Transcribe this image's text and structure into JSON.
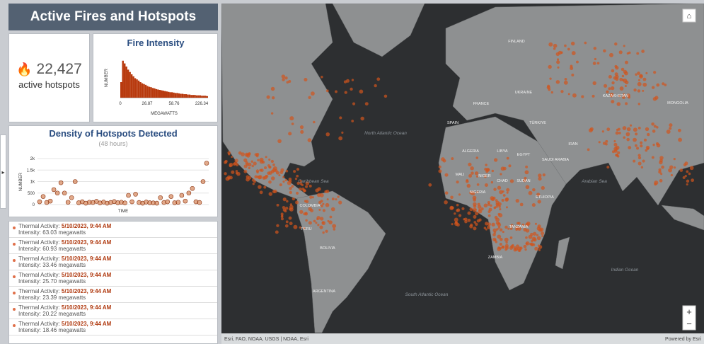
{
  "header": {
    "title": "Active Fires and Hotspots"
  },
  "indicator": {
    "value": "22,427",
    "label": "active hotspots"
  },
  "fire_intensity": {
    "chart_data": {
      "type": "histogram",
      "title": "Fire Intensity",
      "y_label": "NUMBER",
      "x_label": "MEGAWATTS",
      "color": "#b83a0e",
      "ylim": [
        0,
        100
      ],
      "values": [
        40,
        95,
        88,
        80,
        72,
        66,
        60,
        55,
        50,
        47,
        44,
        40,
        37,
        35,
        33,
        30,
        28,
        27,
        25,
        24,
        22,
        21,
        20,
        19,
        18,
        17,
        16,
        15,
        14,
        14,
        13,
        12,
        12,
        11,
        10,
        10,
        9,
        9,
        8,
        8,
        7,
        7,
        7,
        6,
        6,
        6,
        5,
        5,
        5,
        4
      ],
      "xtick_labels": [
        "0",
        "26.87",
        "58.76",
        "226.34"
      ]
    }
  },
  "density": {
    "chart_data": {
      "type": "scatter",
      "title": "Density of Hotspots Detected",
      "subtitle": "(48 hours)",
      "y_label": "NUMBER",
      "x_label": "TIME",
      "color": "#c8622a",
      "ylim": [
        0,
        2000
      ],
      "yticks": [
        {
          "value": 2000,
          "label": "2k"
        },
        {
          "value": 1500,
          "label": "1.5k"
        },
        {
          "value": 1000,
          "label": "1k"
        },
        500,
        0
      ],
      "values": [
        120,
        350,
        90,
        150,
        650,
        500,
        950,
        500,
        100,
        300,
        1000,
        80,
        120,
        60,
        100,
        90,
        140,
        70,
        110,
        60,
        90,
        130,
        80,
        100,
        70,
        400,
        120,
        450,
        90,
        60,
        110,
        80,
        70,
        60,
        300,
        90,
        120,
        350,
        80,
        100,
        400,
        150,
        500,
        700,
        120,
        90,
        1000,
        1800
      ]
    }
  },
  "list": {
    "items": [
      {
        "label": "Thermal Activity:",
        "time": "5/10/2023, 9:44 AM",
        "intensity": "Intensity: 63.03 megawatts"
      },
      {
        "label": "Thermal Activity:",
        "time": "5/10/2023, 9:44 AM",
        "intensity": "Intensity: 60.93 megawatts"
      },
      {
        "label": "Thermal Activity:",
        "time": "5/10/2023, 9:44 AM",
        "intensity": "Intensity: 33.46 megawatts"
      },
      {
        "label": "Thermal Activity:",
        "time": "5/10/2023, 9:44 AM",
        "intensity": "Intensity: 25.70 megawatts"
      },
      {
        "label": "Thermal Activity:",
        "time": "5/10/2023, 9:44 AM",
        "intensity": "Intensity: 23.39 megawatts"
      },
      {
        "label": "Thermal Activity:",
        "time": "5/10/2023, 9:44 AM",
        "intensity": "Intensity: 20.22 megawatts"
      },
      {
        "label": "Thermal Activity:",
        "time": "5/10/2023, 9:44 AM",
        "intensity": "Intensity: 18.46 megawatts"
      }
    ]
  },
  "map": {
    "labels": [
      "North Atlantic Ocean",
      "South Atlantic Ocean",
      "Indian Ocean",
      "Arabian Sea",
      "Caribbean Sea",
      "KAZAKHSTAN",
      "MONGOLIA",
      "ALGERIA",
      "LIBYA",
      "EGYPT",
      "MALI",
      "NIGER",
      "CHAD",
      "SUDAN",
      "NIGERIA",
      "ETHIOPIA",
      "TANZANIA",
      "ZAMBIA",
      "COLOMBIA",
      "PERU",
      "BOLIVIA",
      "ARGENTINA",
      "SAUDI ARABIA",
      "IRAN",
      "TÜRKIYE",
      "SPAIN",
      "FRANCE",
      "UKRAINE",
      "FINLAND"
    ],
    "attribution": "Esri, FAO, NOAA, USGS | NOAA, Esri",
    "powered": "Powered by Esri"
  }
}
